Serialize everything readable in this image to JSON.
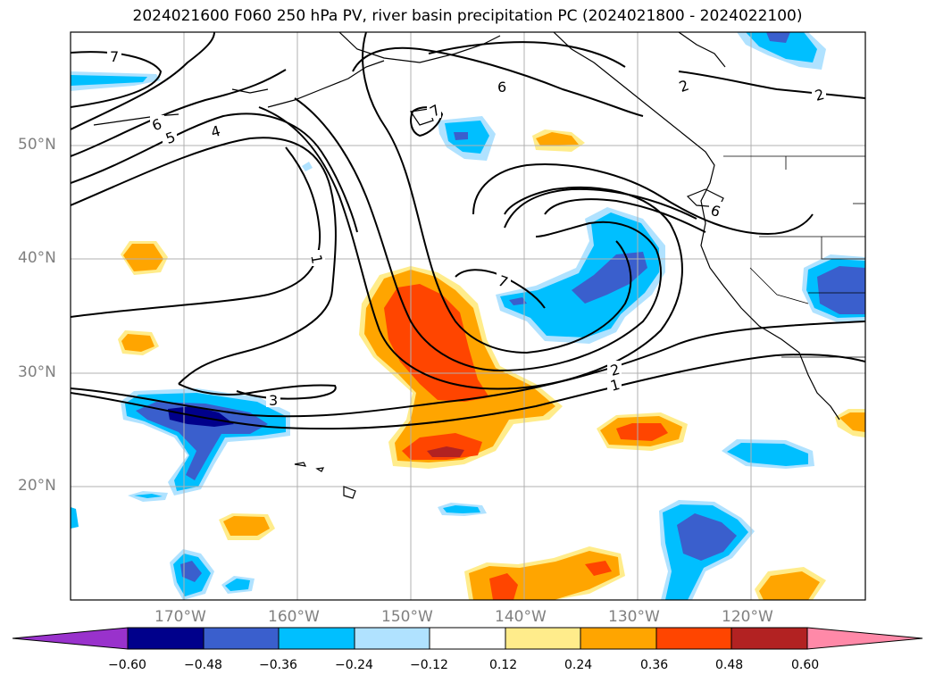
{
  "title": "2024021600 F060 250 hPa PV, river basin precipitation PC (2024021800 - 2024022100)",
  "latitude_labels": [
    "50°N",
    "40°N",
    "30°N",
    "20°N"
  ],
  "longitude_labels": [
    "170°W",
    "160°W",
    "150°W",
    "140°W",
    "130°W",
    "120°W"
  ],
  "contour_labels": [
    "7",
    "6",
    "5",
    "4",
    "1",
    "7",
    "6",
    "2",
    "2",
    "6",
    "7",
    "2",
    "1",
    "3"
  ],
  "colorbar": {
    "ticks": [
      "−0.60",
      "−0.48",
      "−0.36",
      "−0.24",
      "−0.12",
      "0.12",
      "0.24",
      "0.36",
      "0.48",
      "0.60"
    ],
    "colors": [
      "#9932cc",
      "#00008b",
      "#3a5fcd",
      "#00bfff",
      "#b0e2ff",
      "#ffffff",
      "#ffec8b",
      "#ffa500",
      "#ff4500",
      "#b22222",
      "#ff89a8"
    ]
  },
  "colors": {
    "grid": "#b0b0b0",
    "coast": "#000000",
    "contour": "#000000"
  }
}
